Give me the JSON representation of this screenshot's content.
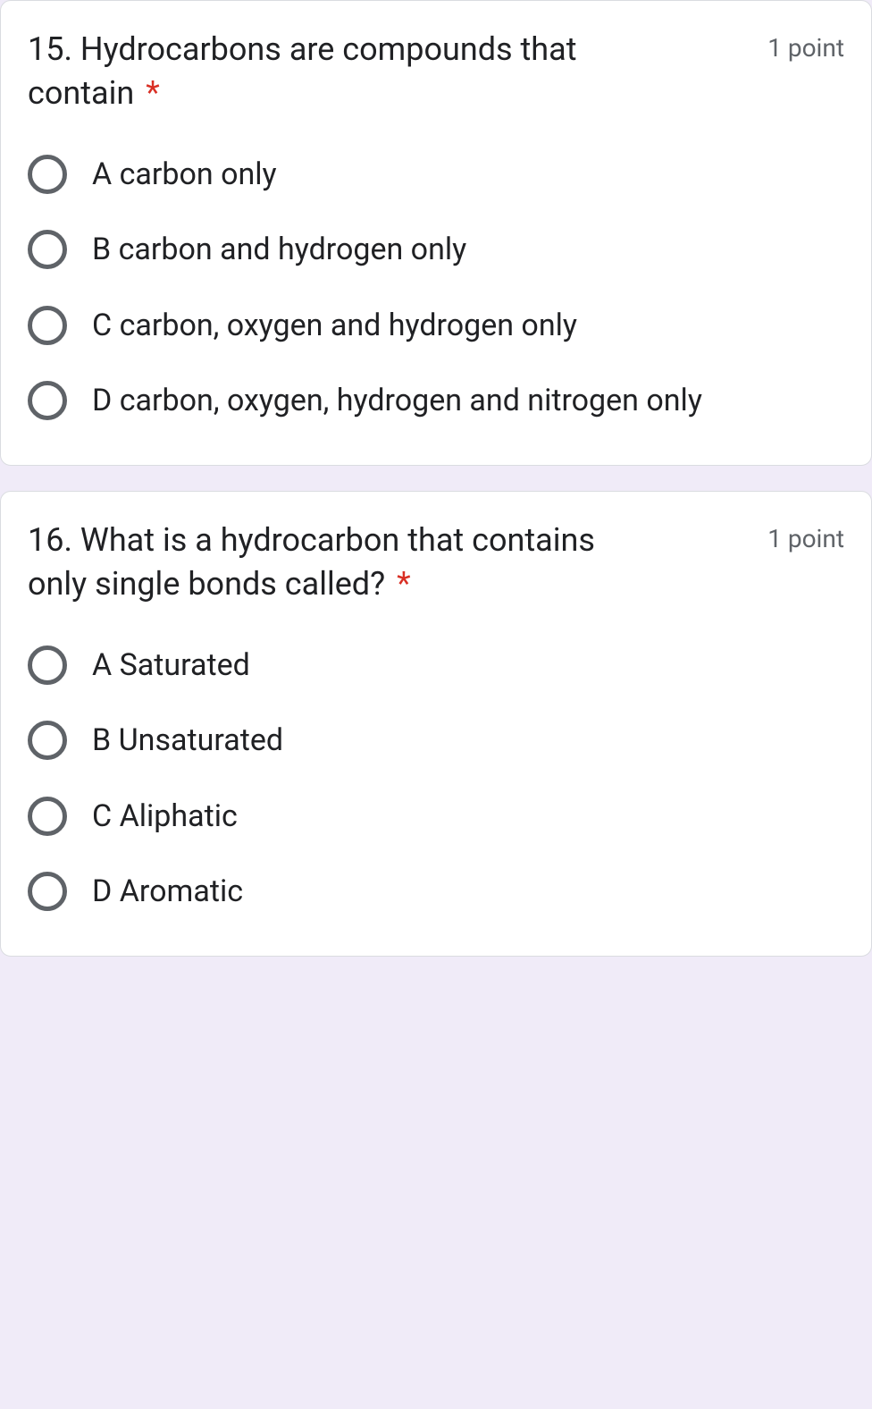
{
  "questions": [
    {
      "title": "15. Hydrocarbons are compounds that contain",
      "required_mark": "*",
      "points": "1 point",
      "options": [
        "A carbon only",
        "B carbon and hydrogen only",
        "C carbon, oxygen and hydrogen only",
        "D carbon, oxygen, hydrogen and nitrogen only"
      ]
    },
    {
      "title": "16. What is a hydrocarbon that contains only single bonds called?",
      "required_mark": "*",
      "points": "1 point",
      "options": [
        "A  Saturated",
        "B  Unsaturated",
        "C  Aliphatic",
        "D  Aromatic"
      ]
    }
  ],
  "colors": {
    "background": "#f0ebf8",
    "card_bg": "#ffffff",
    "border": "#dadce0",
    "text": "#202124",
    "muted": "#5f6368",
    "required": "#d93025"
  }
}
